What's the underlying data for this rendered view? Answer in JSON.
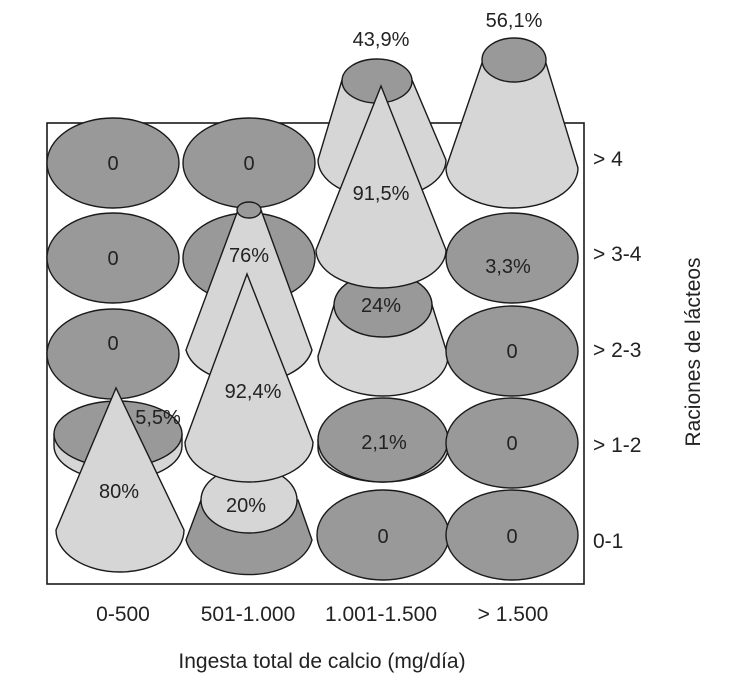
{
  "chart_data": {
    "type": "3d-cone-matrix",
    "xlabel": "Ingesta total de calcio (mg/día)",
    "ylabel": "Raciones de lácteos",
    "x_categories": [
      "0-500",
      "501-1.000",
      "1.001-1.500",
      "> 1.500"
    ],
    "y_categories": [
      "> 4",
      "> 3-4",
      "> 2-3",
      "> 1-2",
      "0-1"
    ],
    "cells": [
      {
        "x": "0-500",
        "y": "> 4",
        "label": "0",
        "value": 0
      },
      {
        "x": "501-1.000",
        "y": "> 4",
        "label": "0",
        "value": 0
      },
      {
        "x": "1.001-1.500",
        "y": "> 4",
        "label": "43,9%",
        "value": 43.9
      },
      {
        "x": "> 1.500",
        "y": "> 4",
        "label": "56,1%",
        "value": 56.1
      },
      {
        "x": "0-500",
        "y": "> 3-4",
        "label": "0",
        "value": 0
      },
      {
        "x": "501-1.000",
        "y": "> 3-4",
        "label": "76%",
        "value": 76
      },
      {
        "x": "1.001-1.500",
        "y": "> 3-4",
        "label": "91,5%",
        "value": 91.5
      },
      {
        "x": "> 1.500",
        "y": "> 3-4",
        "label": "3,3%",
        "value": 3.3
      },
      {
        "x": "0-500",
        "y": "> 2-3",
        "label": "0",
        "value": 0
      },
      {
        "x": "501-1.000",
        "y": "> 2-3",
        "label": "92,4%",
        "value": 92.4
      },
      {
        "x": "1.001-1.500",
        "y": "> 2-3",
        "label": "24%",
        "value": 24
      },
      {
        "x": "> 1.500",
        "y": "> 2-3",
        "label": "0",
        "value": 0
      },
      {
        "x": "0-500",
        "y": "> 1-2",
        "label": "5,5%",
        "value": 5.5
      },
      {
        "x": "501-1.000",
        "y": "> 1-2",
        "label": "20%",
        "value": 20
      },
      {
        "x": "1.001-1.500",
        "y": "> 1-2",
        "label": "2,1%",
        "value": 2.1
      },
      {
        "x": "> 1.500",
        "y": "> 1-2",
        "label": "0",
        "value": 0
      },
      {
        "x": "0-500",
        "y": "0-1",
        "label": "80%",
        "value": 80
      },
      {
        "x": "501-1.000",
        "y": "0-1",
        "label": "20%",
        "value": 20
      },
      {
        "x": "1.001-1.500",
        "y": "0-1",
        "label": "0",
        "value": 0
      },
      {
        "x": "> 1.500",
        "y": "0-1",
        "label": "0",
        "value": 0
      }
    ],
    "colors": {
      "dark": "#999999",
      "light": "#d6d6d6",
      "stroke": "#1a1a1a"
    }
  },
  "texts": {
    "x_ticks": [
      "0-500",
      "501-1.000",
      "1.001-1.500",
      "> 1.500"
    ],
    "y_ticks": [
      "> 4",
      "> 3-4",
      "> 2-3",
      "> 1-2",
      "0-1"
    ],
    "xlabel": "Ingesta total de calcio (mg/día)",
    "ylabel": "Raciones de lácteos",
    "labels": {
      "c00": "0",
      "c10": "0",
      "c01": "0",
      "c02": "0",
      "c32": "0",
      "c33": "0",
      "c23": "0",
      "c24": "0",
      "c34": "0",
      "v_43_9": "43,9%",
      "v_56_1": "56,1%",
      "v_91_5": "91,5%",
      "v_76": "76%",
      "v_3_3": "3,3%",
      "v_24": "24%",
      "v_92_4": "92,4%",
      "v_5_5": "5,5%",
      "v_2_1": "2,1%",
      "v_80": "80%",
      "v_20": "20%"
    }
  }
}
